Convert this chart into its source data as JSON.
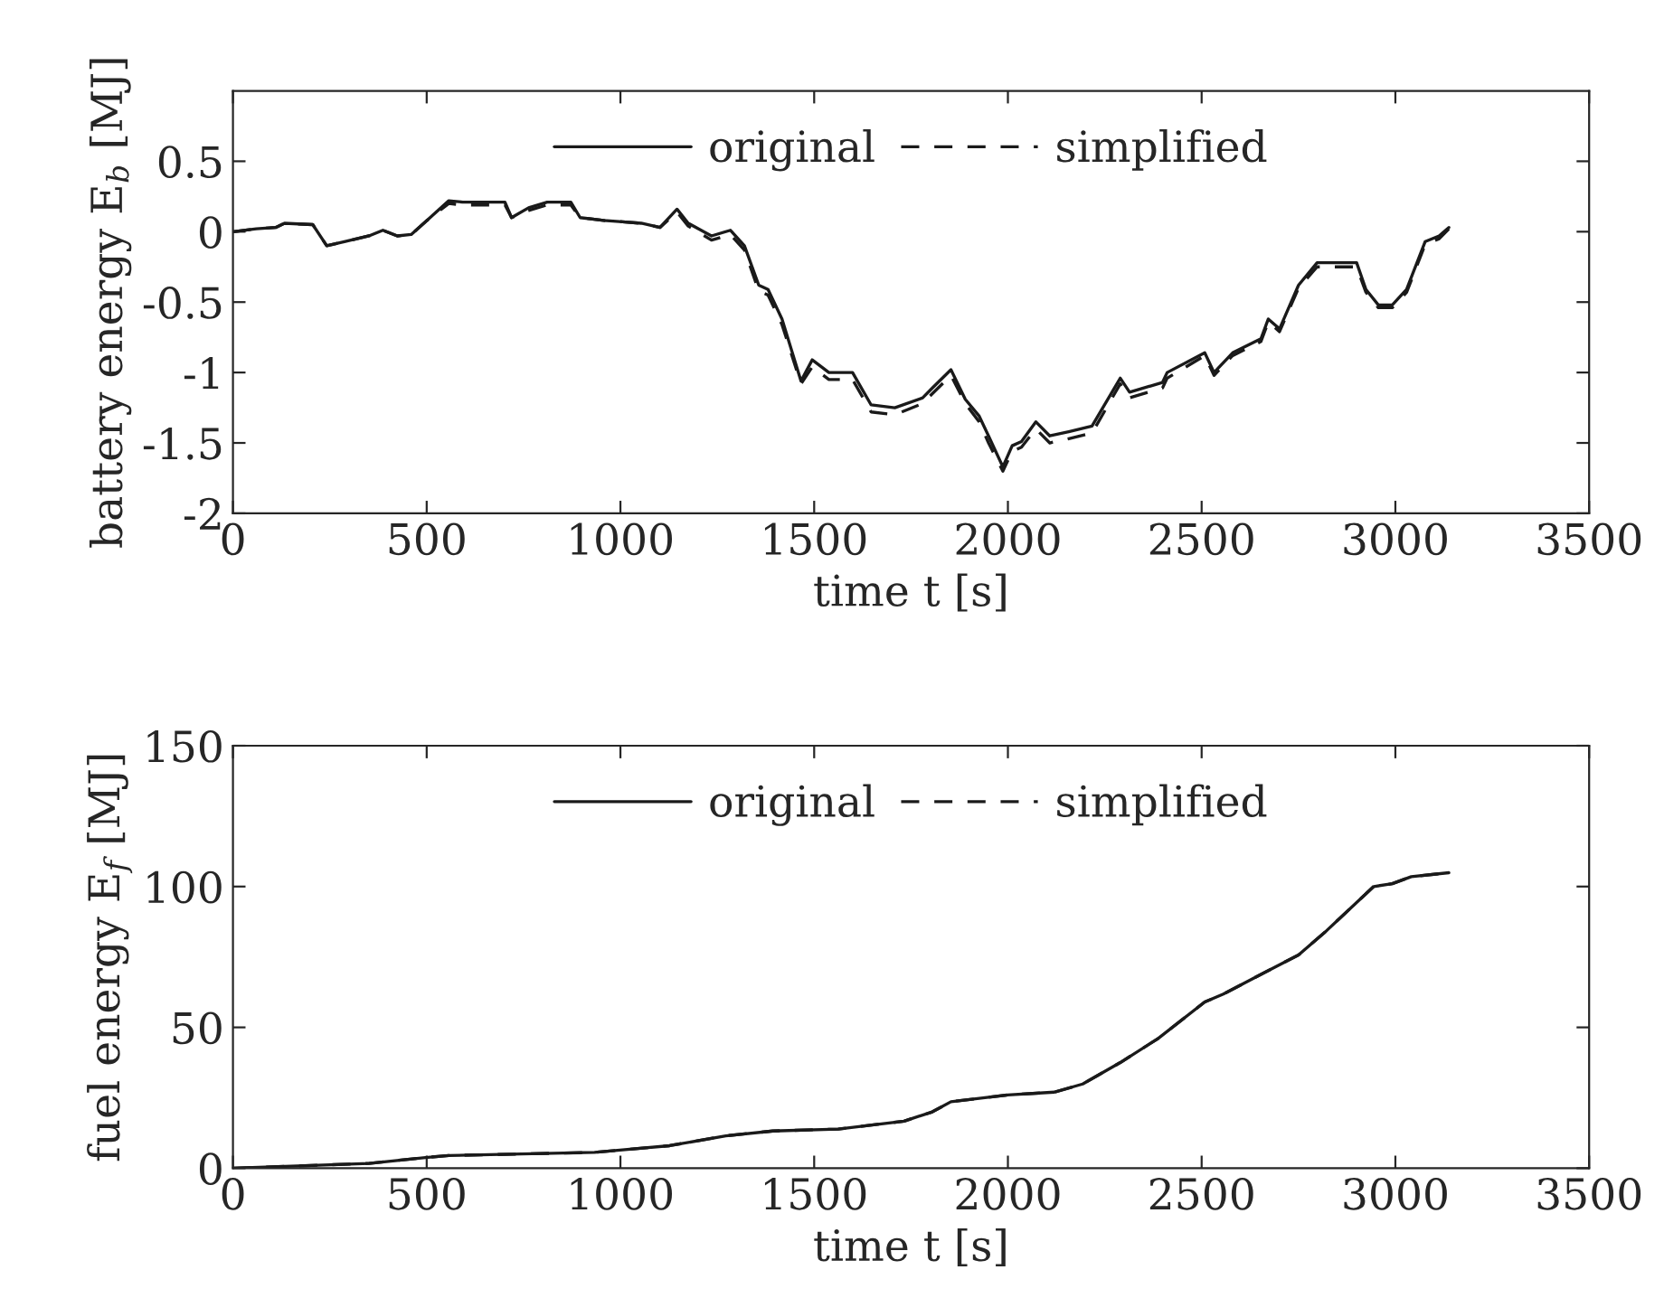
{
  "chart_data": [
    {
      "type": "line",
      "xlabel": "time t [s]",
      "ylabel": "battery energy E$_{b}$ [MJ]",
      "xlim": [
        0,
        3500
      ],
      "xticks": [
        0,
        500,
        1000,
        1500,
        2000,
        2500,
        3000,
        3500
      ],
      "ylim": [
        -2,
        1
      ],
      "yticks": [
        -2,
        -1.5,
        -1,
        -0.5,
        0,
        0.5
      ],
      "legend": "top",
      "grid": false,
      "x": [
        0,
        60,
        110,
        133,
        206,
        242,
        290,
        351,
        387,
        424,
        460,
        501,
        557,
        593,
        702,
        719,
        763,
        811,
        872,
        896,
        957,
        1005,
        1054,
        1102,
        1146,
        1175,
        1235,
        1284,
        1320,
        1357,
        1381,
        1417,
        1466,
        1495,
        1538,
        1599,
        1647,
        1708,
        1780,
        1805,
        1853,
        1890,
        1926,
        1950,
        1987,
        2011,
        2035,
        2072,
        2108,
        2157,
        2217,
        2290,
        2314,
        2399,
        2411,
        2508,
        2532,
        2580,
        2653,
        2672,
        2701,
        2750,
        2798,
        2900,
        2924,
        2956,
        2992,
        3029,
        3077,
        3113,
        3138
      ],
      "series": [
        {
          "name": "original",
          "color": "#1a1a1a",
          "line_style": "solid",
          "values": [
            0,
            0.02,
            0.03,
            0.06,
            0.05,
            -0.1,
            -0.07,
            -0.03,
            0.01,
            -0.03,
            -0.02,
            0.08,
            0.22,
            0.21,
            0.21,
            0.1,
            0.17,
            0.21,
            0.21,
            0.1,
            0.08,
            0.07,
            0.06,
            0.03,
            0.16,
            0.06,
            -0.03,
            0.01,
            -0.1,
            -0.38,
            -0.41,
            -0.62,
            -1.06,
            -0.91,
            -1.0,
            -1.0,
            -1.23,
            -1.25,
            -1.18,
            -1.11,
            -0.98,
            -1.19,
            -1.31,
            -1.45,
            -1.67,
            -1.52,
            -1.49,
            -1.35,
            -1.45,
            -1.42,
            -1.38,
            -1.04,
            -1.14,
            -1.07,
            -1.0,
            -0.86,
            -1.0,
            -0.86,
            -0.76,
            -0.62,
            -0.69,
            -0.38,
            -0.22,
            -0.22,
            -0.41,
            -0.52,
            -0.52,
            -0.41,
            -0.07,
            -0.03,
            0.03
          ]
        },
        {
          "name": "simplified",
          "color": "#1a1a1a",
          "line_style": "dashed",
          "values": [
            0,
            0.02,
            0.03,
            0.06,
            0.05,
            -0.1,
            -0.07,
            -0.03,
            0.01,
            -0.03,
            -0.02,
            0.08,
            0.2,
            0.19,
            0.19,
            0.1,
            0.15,
            0.19,
            0.19,
            0.1,
            0.08,
            0.07,
            0.06,
            0.03,
            0.14,
            0.04,
            -0.06,
            -0.02,
            -0.13,
            -0.42,
            -0.45,
            -0.66,
            -1.08,
            -0.96,
            -1.05,
            -1.05,
            -1.28,
            -1.3,
            -1.22,
            -1.15,
            -1.02,
            -1.22,
            -1.35,
            -1.5,
            -1.7,
            -1.56,
            -1.53,
            -1.4,
            -1.5,
            -1.47,
            -1.43,
            -1.08,
            -1.18,
            -1.11,
            -1.04,
            -0.88,
            -1.02,
            -0.88,
            -0.78,
            -0.64,
            -0.71,
            -0.4,
            -0.25,
            -0.25,
            -0.43,
            -0.54,
            -0.54,
            -0.43,
            -0.09,
            -0.05,
            0.02
          ]
        }
      ]
    },
    {
      "type": "line",
      "xlabel": "time t [s]",
      "ylabel": "fuel energy E$_{f}$ [MJ]",
      "xlim": [
        0,
        3500
      ],
      "xticks": [
        0,
        500,
        1000,
        1500,
        2000,
        2500,
        3000,
        3500
      ],
      "ylim": [
        0,
        150
      ],
      "yticks": [
        0,
        50,
        100,
        150
      ],
      "legend": "top",
      "grid": false,
      "x": [
        0,
        351,
        497,
        557,
        933,
        1127,
        1272,
        1393,
        1562,
        1732,
        1805,
        1853,
        1999,
        2120,
        2193,
        2290,
        2387,
        2508,
        2556,
        2653,
        2750,
        2823,
        2944,
        2992,
        3041,
        3138
      ],
      "series": [
        {
          "name": "original",
          "color": "#1a1a1a",
          "line_style": "solid",
          "values": [
            0,
            1.7,
            3.8,
            4.5,
            5.6,
            8,
            11.5,
            13.2,
            13.9,
            16.7,
            20,
            23.6,
            26,
            27,
            29.9,
            37.5,
            46,
            59,
            61.8,
            68.8,
            75.7,
            84.4,
            100,
            101,
            103.5,
            104.9
          ]
        },
        {
          "name": "simplified",
          "color": "#1a1a1a",
          "line_style": "dashed",
          "values": [
            0,
            1.7,
            3.8,
            4.5,
            5.6,
            8,
            11.5,
            13.2,
            13.9,
            16.7,
            20,
            23.6,
            26,
            27,
            29.9,
            37.5,
            46,
            59,
            61.8,
            68.8,
            75.7,
            84.4,
            100,
            101,
            103.5,
            104.9
          ]
        }
      ]
    }
  ]
}
